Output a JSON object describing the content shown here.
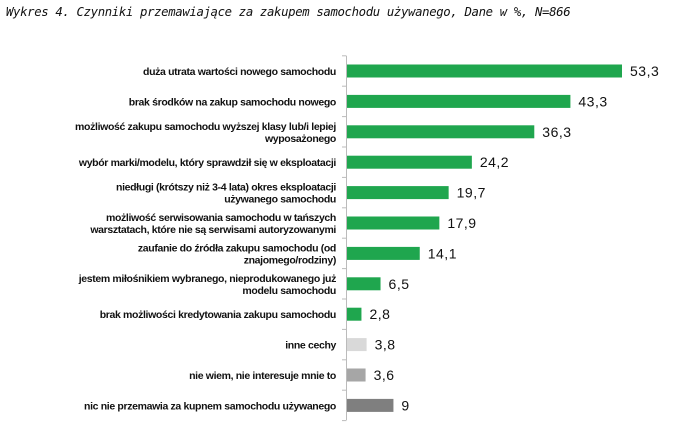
{
  "chart_data": {
    "type": "bar",
    "orientation": "horizontal",
    "title": "Wykres 4. Czynniki przemawiające za zakupem samochodu używanego, Dane w %, N=866",
    "xlabel": "",
    "ylabel": "",
    "xlim": [
      0,
      55
    ],
    "grid": false,
    "categories": [
      [
        "duża utrata wartości nowego samochodu"
      ],
      [
        "brak środków na zakup samochodu nowego"
      ],
      [
        "możliwość zakupu samochodu wyższej klasy lub/i lepiej",
        "wyposażonego"
      ],
      [
        "wybór marki/modelu, który sprawdził się w eksploatacji"
      ],
      [
        "niedługi (krótszy niż 3-4 lata) okres eksploatacji",
        "używanego samochodu"
      ],
      [
        "możliwość serwisowania samochodu w tańszych",
        "warsztatach, które nie są serwisami autoryzowanymi"
      ],
      [
        "zaufanie do źródła zakupu samochodu (od",
        "znajomego/rodziny)"
      ],
      [
        "jestem miłośnikiem wybranego, nieprodukowanego już",
        "modelu samochodu"
      ],
      [
        "brak możliwości kredytowania zakupu samochodu"
      ],
      [
        "inne cechy"
      ],
      [
        "nie wiem, nie interesuje mnie to"
      ],
      [
        "nic nie przemawia za kupnem samochodu używanego"
      ]
    ],
    "values": [
      53.3,
      43.3,
      36.3,
      24.2,
      19.7,
      17.9,
      14.1,
      6.5,
      2.8,
      3.8,
      3.6,
      9
    ],
    "value_labels": [
      "53,3",
      "43,3",
      "36,3",
      "24,2",
      "19,7",
      "17,9",
      "14,1",
      "6,5",
      "2,8",
      "3,8",
      "3,6",
      "9"
    ],
    "colors": [
      "#1fa64e",
      "#1fa64e",
      "#1fa64e",
      "#1fa64e",
      "#1fa64e",
      "#1fa64e",
      "#1fa64e",
      "#1fa64e",
      "#1fa64e",
      "#d9d9d9",
      "#a6a6a6",
      "#7f7f7f"
    ]
  }
}
